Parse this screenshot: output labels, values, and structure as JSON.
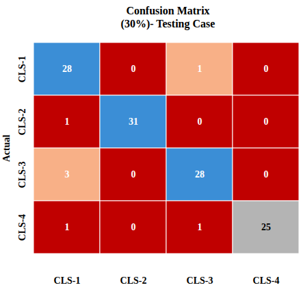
{
  "chart_data": {
    "type": "heatmap",
    "title": "Confusion Matrix",
    "subtitle": "(30%)- Testing Case",
    "y_label": "Actual",
    "x_categories": [
      "CLS-1",
      "CLS-2",
      "CLS-3",
      "CLS-4"
    ],
    "y_categories": [
      "CLS-1",
      "CLS-2",
      "CLS-3",
      "CLS-4"
    ],
    "cells": [
      [
        28,
        0,
        1,
        0
      ],
      [
        1,
        31,
        0,
        0
      ],
      [
        3,
        0,
        28,
        0
      ],
      [
        1,
        0,
        1,
        25
      ]
    ],
    "colors": [
      [
        "#3b8ed6",
        "#c00000",
        "#f8b087",
        "#c00000"
      ],
      [
        "#c00000",
        "#3b8ed6",
        "#c00000",
        "#c00000"
      ],
      [
        "#f8b087",
        "#c00000",
        "#3b8ed6",
        "#c00000"
      ],
      [
        "#c00000",
        "#c00000",
        "#c00000",
        "#b4b4b4"
      ]
    ],
    "data_labels": true
  }
}
